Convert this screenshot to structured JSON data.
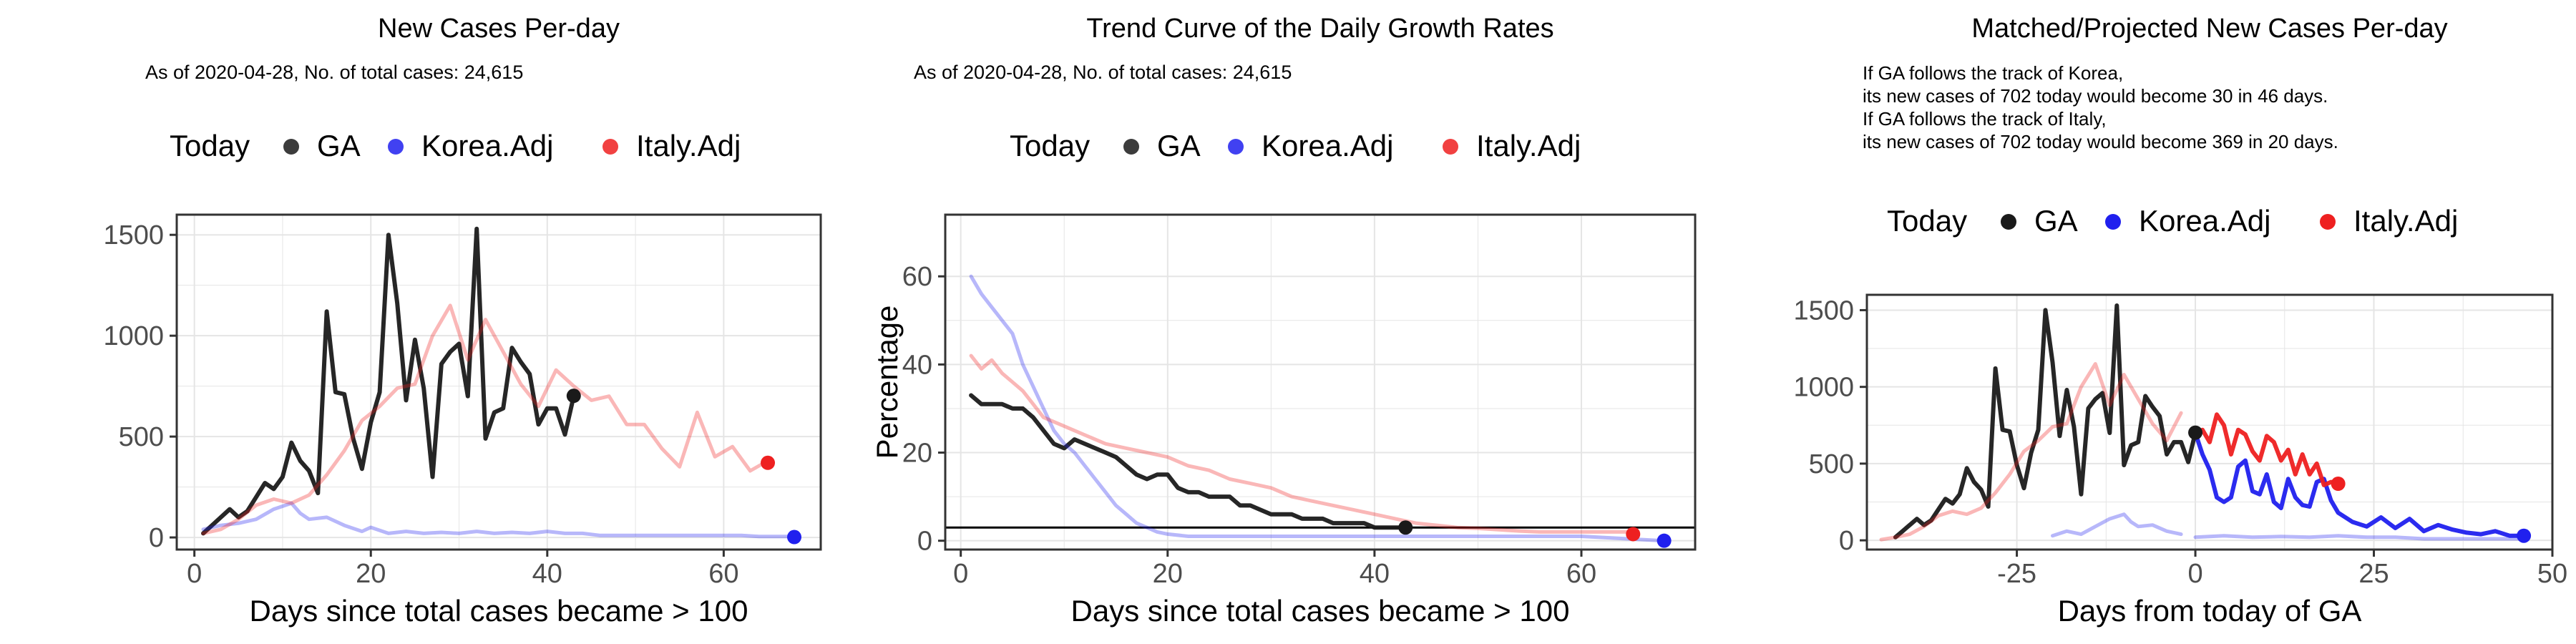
{
  "colors": {
    "GA": "#1a1a1a",
    "Korea.Adj": "#2020ee",
    "Italy.Adj": "#ee2020",
    "grid": "#e5e5e5",
    "panel_border": "#333333"
  },
  "legend": {
    "title": "Today",
    "entries": [
      "GA",
      "Korea.Adj",
      "Italy.Adj"
    ]
  },
  "chart_data": [
    {
      "type": "line",
      "title": "New Cases Per-day",
      "subtitle": "As of 2020-04-28, No. of total cases: 24,615",
      "xlabel": "Days since total cases became > 100",
      "ylabel": "",
      "xlim": [
        -2,
        71
      ],
      "ylim": [
        -60,
        1600
      ],
      "xticks": [
        0,
        20,
        40,
        60
      ],
      "yticks": [
        0,
        500,
        1000,
        1500
      ],
      "grid": true,
      "legend_position": "top",
      "series": [
        {
          "name": "GA",
          "x": [
            1,
            2,
            3,
            4,
            5,
            6,
            7,
            8,
            9,
            10,
            11,
            12,
            13,
            14,
            15,
            16,
            17,
            18,
            19,
            20,
            21,
            22,
            23,
            24,
            25,
            26,
            27,
            28,
            29,
            30,
            31,
            32,
            33,
            34,
            35,
            36,
            37,
            38,
            39,
            40,
            41,
            42,
            43
          ],
          "y": [
            20,
            60,
            100,
            140,
            100,
            130,
            200,
            270,
            240,
            300,
            470,
            380,
            330,
            220,
            1120,
            720,
            710,
            490,
            340,
            570,
            720,
            1500,
            1160,
            680,
            980,
            740,
            300,
            860,
            920,
            960,
            700,
            1530,
            490,
            620,
            640,
            940,
            870,
            810,
            560,
            640,
            640,
            510,
            700
          ]
        },
        {
          "name": "Korea.Adj",
          "x": [
            1,
            3,
            5,
            7,
            9,
            11,
            12,
            13,
            15,
            17,
            19,
            20,
            22,
            24,
            26,
            28,
            30,
            32,
            34,
            36,
            38,
            40,
            42,
            44,
            46,
            48,
            50,
            52,
            54,
            56,
            58,
            60,
            62,
            64,
            66,
            68
          ],
          "y": [
            40,
            60,
            70,
            90,
            140,
            170,
            120,
            90,
            100,
            60,
            30,
            50,
            20,
            30,
            20,
            25,
            20,
            30,
            20,
            25,
            20,
            30,
            20,
            20,
            10,
            10,
            10,
            10,
            10,
            10,
            10,
            10,
            10,
            5,
            5,
            5
          ]
        },
        {
          "name": "Italy.Adj",
          "x": [
            1,
            3,
            5,
            7,
            9,
            11,
            13,
            15,
            17,
            19,
            21,
            23,
            25,
            27,
            29,
            31,
            33,
            35,
            37,
            39,
            41,
            43,
            45,
            47,
            49,
            51,
            53,
            55,
            57,
            59,
            61,
            63,
            65
          ],
          "y": [
            20,
            40,
            90,
            160,
            190,
            170,
            210,
            310,
            430,
            580,
            650,
            740,
            760,
            1000,
            1150,
            880,
            1080,
            920,
            760,
            650,
            830,
            750,
            680,
            700,
            560,
            560,
            440,
            350,
            620,
            400,
            450,
            330,
            380
          ]
        }
      ],
      "today_points": [
        {
          "name": "GA",
          "x": 43,
          "y": 702
        },
        {
          "name": "Korea.Adj",
          "x": 68,
          "y": 2
        },
        {
          "name": "Italy.Adj",
          "x": 65,
          "y": 370
        }
      ]
    },
    {
      "type": "line",
      "title": "Trend Curve of the Daily Growth Rates",
      "subtitle": "As of 2020-04-28, No. of total cases: 24,615",
      "xlabel": "Days since total cases became > 100",
      "ylabel": "Percentage",
      "xlim": [
        -1.5,
        71
      ],
      "ylim": [
        -2,
        74
      ],
      "xticks": [
        0,
        20,
        40,
        60
      ],
      "yticks": [
        0,
        20,
        40,
        60
      ],
      "grid": true,
      "legend_position": "top",
      "hline": 3,
      "series": [
        {
          "name": "GA",
          "x": [
            1,
            2,
            3,
            4,
            5,
            6,
            7,
            8,
            9,
            10,
            11,
            12,
            13,
            14,
            15,
            16,
            17,
            18,
            19,
            20,
            21,
            22,
            23,
            24,
            25,
            26,
            27,
            28,
            29,
            30,
            31,
            32,
            33,
            34,
            35,
            36,
            37,
            38,
            39,
            40,
            41,
            42,
            43
          ],
          "y": [
            33,
            31,
            31,
            31,
            30,
            30,
            28,
            25,
            22,
            21,
            23,
            22,
            21,
            20,
            19,
            17,
            15,
            14,
            15,
            15,
            12,
            11,
            11,
            10,
            10,
            10,
            8,
            8,
            7,
            6,
            6,
            6,
            5,
            5,
            5,
            4,
            4,
            4,
            4,
            3,
            3,
            3,
            3
          ]
        },
        {
          "name": "Korea.Adj",
          "x": [
            1,
            2,
            3,
            4,
            5,
            6,
            7,
            8,
            9,
            10,
            11,
            12,
            13,
            14,
            15,
            16,
            17,
            18,
            19,
            20,
            22,
            24,
            28,
            32,
            36,
            40,
            44,
            48,
            52,
            56,
            60,
            64,
            68
          ],
          "y": [
            60,
            56,
            53,
            50,
            47,
            40,
            35,
            30,
            25,
            22,
            20,
            17,
            14,
            11,
            8,
            6,
            4,
            3,
            2,
            1.5,
            1,
            1,
            1,
            1,
            1,
            1,
            1,
            1,
            1,
            1,
            1,
            0.5,
            0
          ]
        },
        {
          "name": "Italy.Adj",
          "x": [
            1,
            2,
            3,
            4,
            5,
            6,
            7,
            8,
            10,
            12,
            14,
            16,
            18,
            20,
            22,
            24,
            26,
            28,
            30,
            32,
            34,
            36,
            38,
            40,
            42,
            44,
            46,
            48,
            50,
            52,
            54,
            56,
            58,
            60,
            62,
            65
          ],
          "y": [
            42,
            39,
            41,
            38,
            36,
            34,
            31,
            28,
            26,
            24,
            22,
            21,
            20,
            19,
            17,
            16,
            14,
            13,
            12,
            10,
            9,
            8,
            7,
            6,
            5,
            4,
            3.5,
            3,
            2.8,
            2.5,
            2.2,
            2,
            2,
            2,
            2,
            2
          ]
        }
      ],
      "today_points": [
        {
          "name": "GA",
          "x": 43,
          "y": 3
        },
        {
          "name": "Korea.Adj",
          "x": 68,
          "y": 0
        },
        {
          "name": "Italy.Adj",
          "x": 65,
          "y": 1.5
        }
      ]
    },
    {
      "type": "line",
      "title": "Matched/Projected New Cases Per-day",
      "subtitle": "",
      "annotations": [
        "If GA follows the track of Korea,",
        "its new cases of 702 today would become 30 in 46 days.",
        "If GA follows the track of Italy,",
        "its new cases of 702 today would become 369 in 20 days."
      ],
      "xlabel": "Days from today of GA",
      "ylabel": "",
      "xlim": [
        -46,
        50
      ],
      "ylim": [
        -60,
        1600
      ],
      "xticks": [
        -25,
        0,
        25,
        50
      ],
      "yticks": [
        0,
        500,
        1000,
        1500
      ],
      "grid": true,
      "legend_position": "top",
      "series": [
        {
          "name": "GA",
          "x": [
            -42,
            -41,
            -40,
            -39,
            -38,
            -37,
            -36,
            -35,
            -34,
            -33,
            -32,
            -31,
            -30,
            -29,
            -28,
            -27,
            -26,
            -25,
            -24,
            -23,
            -22,
            -21,
            -20,
            -19,
            -18,
            -17,
            -16,
            -15,
            -14,
            -13,
            -12,
            -11,
            -10,
            -9,
            -8,
            -7,
            -6,
            -5,
            -4,
            -3,
            -2,
            -1,
            0
          ],
          "y": [
            20,
            60,
            100,
            140,
            100,
            130,
            200,
            270,
            240,
            300,
            470,
            380,
            330,
            220,
            1120,
            720,
            710,
            490,
            340,
            570,
            720,
            1500,
            1160,
            680,
            980,
            740,
            300,
            860,
            920,
            960,
            700,
            1530,
            490,
            620,
            640,
            940,
            870,
            810,
            560,
            640,
            640,
            510,
            700
          ]
        },
        {
          "name": "Korea.Adj history",
          "x": [
            -20,
            -18,
            -16,
            -14,
            -12,
            -10,
            -9,
            -8,
            -6,
            -4,
            -2
          ],
          "y": [
            30,
            60,
            40,
            90,
            140,
            170,
            120,
            90,
            100,
            60,
            40
          ]
        },
        {
          "name": "Korea.Adj history tail",
          "x": [
            0,
            4,
            8,
            12,
            16,
            20,
            24,
            28,
            32,
            36,
            40,
            44,
            46
          ],
          "y": [
            20,
            30,
            20,
            25,
            20,
            30,
            20,
            20,
            10,
            10,
            10,
            10,
            10
          ]
        },
        {
          "name": "Italy.Adj history",
          "x": [
            -44,
            -42,
            -40,
            -38,
            -36,
            -34,
            -32,
            -30,
            -28,
            -26,
            -24,
            -22,
            -20,
            -18,
            -16,
            -14,
            -12,
            -10,
            -8,
            -6,
            -4,
            -2
          ],
          "y": [
            5,
            20,
            40,
            90,
            160,
            190,
            170,
            210,
            310,
            430,
            580,
            650,
            740,
            760,
            1000,
            1150,
            880,
            1080,
            920,
            760,
            650,
            830
          ]
        },
        {
          "name": "Korea.Adj projection",
          "x": [
            0,
            1,
            2,
            3,
            4,
            5,
            6,
            7,
            8,
            9,
            10,
            11,
            12,
            13,
            14,
            15,
            16,
            17,
            18,
            19,
            20,
            22,
            24,
            26,
            28,
            30,
            32,
            34,
            36,
            38,
            40,
            42,
            44,
            46
          ],
          "y": [
            700,
            560,
            460,
            280,
            250,
            280,
            480,
            520,
            320,
            300,
            430,
            250,
            210,
            400,
            280,
            230,
            220,
            380,
            400,
            260,
            180,
            120,
            90,
            150,
            80,
            140,
            60,
            100,
            70,
            50,
            40,
            60,
            30,
            30
          ]
        },
        {
          "name": "Italy.Adj projection",
          "x": [
            0,
            1,
            2,
            3,
            4,
            5,
            6,
            7,
            8,
            9,
            10,
            11,
            12,
            13,
            14,
            15,
            16,
            17,
            18,
            19,
            20
          ],
          "y": [
            700,
            720,
            640,
            820,
            750,
            560,
            720,
            690,
            580,
            520,
            680,
            640,
            520,
            590,
            430,
            560,
            430,
            500,
            360,
            380,
            369
          ]
        }
      ],
      "today_points": [
        {
          "name": "GA",
          "x": 0,
          "y": 702
        },
        {
          "name": "Korea.Adj",
          "x": 46,
          "y": 30
        },
        {
          "name": "Italy.Adj",
          "x": 20,
          "y": 369
        }
      ]
    }
  ]
}
